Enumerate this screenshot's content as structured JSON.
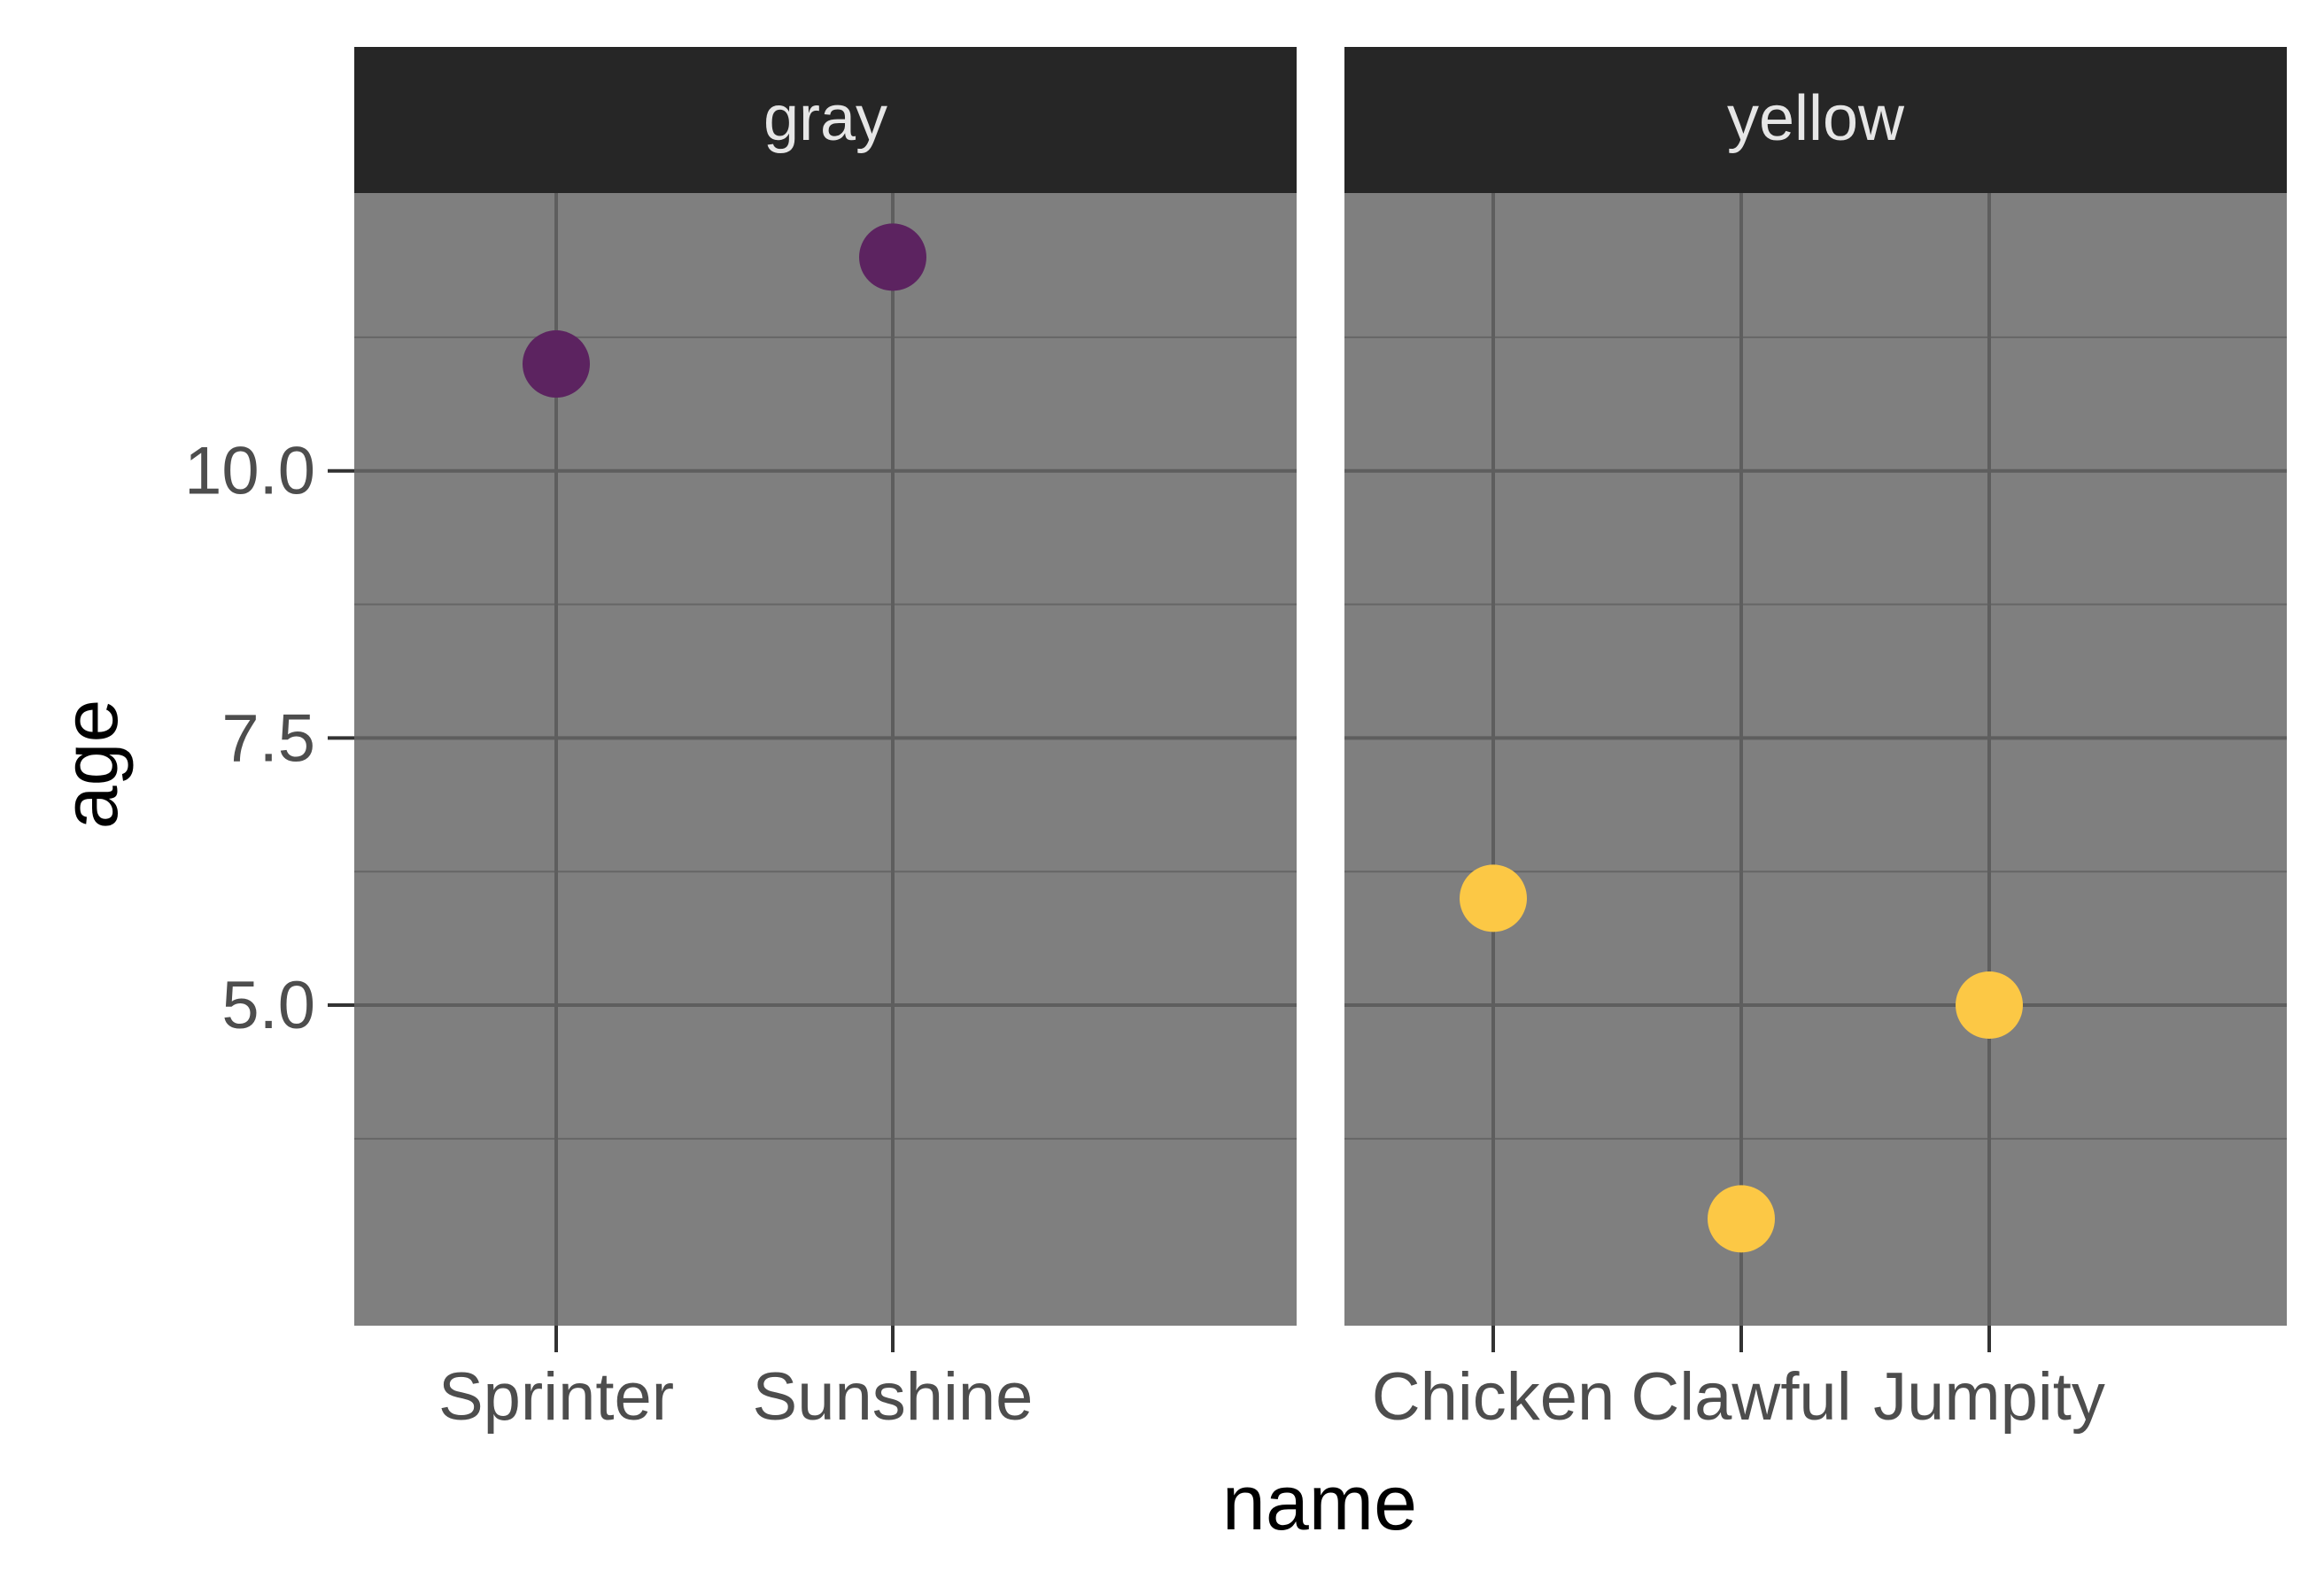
{
  "chart_data": {
    "type": "scatter",
    "facet_by": "color",
    "xlabel": "name",
    "ylabel": "age",
    "ylim": [
      2.0,
      12.6
    ],
    "y_ticks": [
      "5.0",
      "7.5",
      "10.0"
    ],
    "y_tick_values": [
      5.0,
      7.5,
      10.0
    ],
    "grid": true,
    "legend": "none",
    "panel_background": "#7f7f7f",
    "strip_background": "#262626",
    "panels": [
      {
        "strip": "gray",
        "categories": [
          "Sprinter",
          "Sunshine"
        ],
        "points": [
          {
            "name": "Sprinter",
            "age": 11
          },
          {
            "name": "Sunshine",
            "age": 12
          }
        ],
        "point_color": "#5c2360"
      },
      {
        "strip": "yellow",
        "categories": [
          "Chicken",
          "Clawful",
          "Jumpity"
        ],
        "points": [
          {
            "name": "Chicken",
            "age": 6
          },
          {
            "name": "Clawful",
            "age": 3
          },
          {
            "name": "Jumpity",
            "age": 5
          }
        ],
        "point_color": "#fcc845"
      }
    ]
  }
}
